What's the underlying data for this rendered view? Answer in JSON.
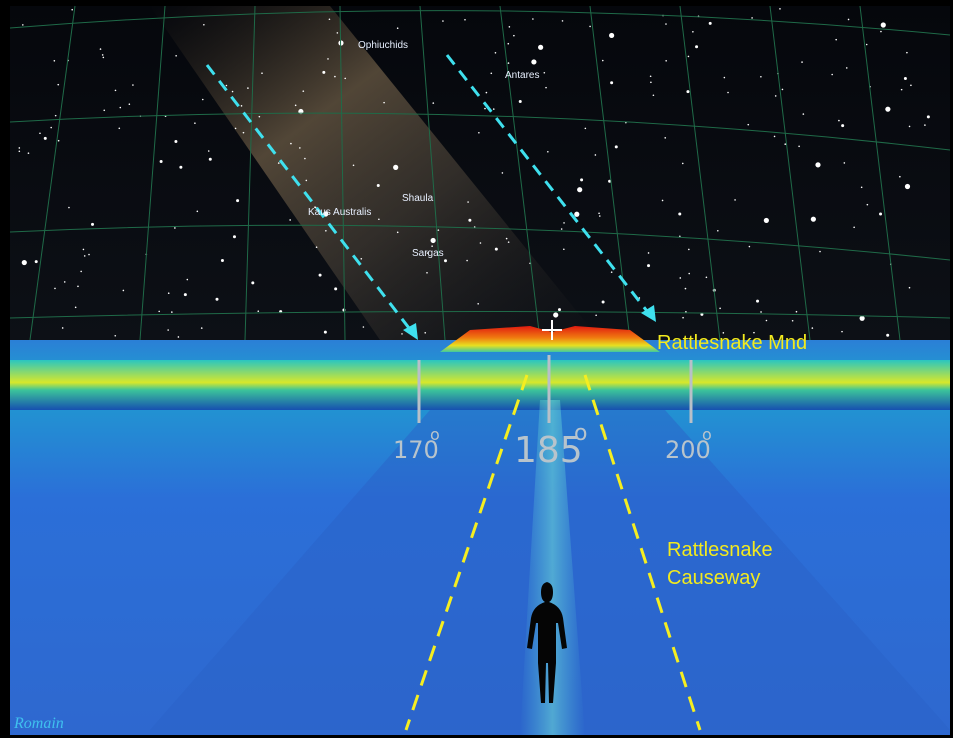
{
  "sky_labels": {
    "ophiuchids": "Ophiuchids",
    "antares": "Antares",
    "shaula": "Shaula",
    "kaus_australis": "Kaus Australis",
    "sargas": "Sargas"
  },
  "mound_label": "Rattlesnake Mnd",
  "azimuth_markers": {
    "unit": "o",
    "left": "170",
    "center": "185",
    "right": "200"
  },
  "causeway_label": [
    "Rattlesnake",
    "Causeway"
  ],
  "signature": "Romain"
}
